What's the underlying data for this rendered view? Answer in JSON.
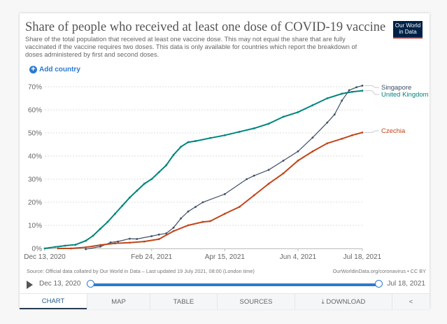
{
  "header": {
    "title": "Share of people who received at least one dose of COVID-19 vaccine",
    "subtitle": "Share of the total population that received at least one vaccine dose. This may not equal the share that are fully vaccinated if the vaccine requires two doses. This data is only available for countries which report the breakdown of doses administered by first and second doses.",
    "logo_line1": "Our World",
    "logo_line2": "in Data",
    "add_country": "Add country"
  },
  "colors": {
    "uk": "#00847e",
    "singapore": "#3c4e66",
    "czechia": "#c0461b",
    "accent": "#2c7ad1"
  },
  "chart_data": {
    "type": "line",
    "title": "Share of people who received at least one dose of COVID-19 vaccine",
    "xlabel": "",
    "ylabel": "",
    "ylim": [
      0,
      70
    ],
    "yticks": [
      "0%",
      "10%",
      "20%",
      "30%",
      "40%",
      "50%",
      "60%",
      "70%"
    ],
    "ytick_values": [
      0,
      10,
      20,
      30,
      40,
      50,
      60,
      70
    ],
    "xticks": [
      "Dec 13, 2020",
      "Feb 24, 2021",
      "Apr 15, 2021",
      "Jun 4, 2021",
      "Jul 18, 2021"
    ],
    "xtick_days": [
      0,
      73,
      123,
      173,
      217
    ],
    "xlim_days": [
      0,
      217
    ],
    "grid": true,
    "legend": "right-end labels",
    "series": [
      {
        "name": "United Kingdom",
        "color_key": "uk",
        "points": [
          [
            0,
            0
          ],
          [
            7,
            0.6
          ],
          [
            14,
            1.2
          ],
          [
            21,
            1.6
          ],
          [
            28,
            3.3
          ],
          [
            33,
            5.5
          ],
          [
            38,
            8.5
          ],
          [
            43,
            11.5
          ],
          [
            48,
            15
          ],
          [
            53,
            18.5
          ],
          [
            58,
            22
          ],
          [
            63,
            25
          ],
          [
            68,
            28
          ],
          [
            73,
            30
          ],
          [
            78,
            33
          ],
          [
            83,
            36
          ],
          [
            88,
            40.5
          ],
          [
            93,
            44
          ],
          [
            98,
            46
          ],
          [
            103,
            46.5
          ],
          [
            113,
            47.8
          ],
          [
            123,
            49
          ],
          [
            133,
            50.5
          ],
          [
            143,
            52
          ],
          [
            153,
            54
          ],
          [
            163,
            57
          ],
          [
            173,
            59
          ],
          [
            183,
            62
          ],
          [
            193,
            65
          ],
          [
            203,
            67
          ],
          [
            210,
            67.8
          ],
          [
            217,
            68.3
          ]
        ]
      },
      {
        "name": "Singapore",
        "color_key": "singapore",
        "points": [
          [
            28,
            -0.3
          ],
          [
            38,
            0.8
          ],
          [
            45,
            2.6
          ],
          [
            50,
            3
          ],
          [
            58,
            4.2
          ],
          [
            63,
            4.1
          ],
          [
            73,
            5.3
          ],
          [
            78,
            6
          ],
          [
            83,
            6.5
          ],
          [
            88,
            9
          ],
          [
            93,
            13
          ],
          [
            98,
            16
          ],
          [
            103,
            18
          ],
          [
            108,
            20
          ],
          [
            123,
            23.5
          ],
          [
            138,
            30
          ],
          [
            143,
            31.5
          ],
          [
            153,
            34
          ],
          [
            163,
            38
          ],
          [
            173,
            42
          ],
          [
            183,
            48
          ],
          [
            193,
            54.5
          ],
          [
            198,
            58
          ],
          [
            203,
            64
          ],
          [
            208,
            68.5
          ],
          [
            213,
            69.8
          ],
          [
            217,
            70.5
          ]
        ]
      },
      {
        "name": "Czechia",
        "color_key": "czechia",
        "points": [
          [
            9,
            0
          ],
          [
            18,
            0
          ],
          [
            28,
            0.5
          ],
          [
            38,
            1.5
          ],
          [
            48,
            2.2
          ],
          [
            58,
            2.5
          ],
          [
            68,
            3
          ],
          [
            78,
            4
          ],
          [
            88,
            7.5
          ],
          [
            98,
            10
          ],
          [
            108,
            11.5
          ],
          [
            113,
            11.8
          ],
          [
            123,
            15
          ],
          [
            133,
            18
          ],
          [
            143,
            23
          ],
          [
            153,
            28
          ],
          [
            163,
            32.5
          ],
          [
            173,
            38
          ],
          [
            183,
            42
          ],
          [
            193,
            45.5
          ],
          [
            203,
            47.5
          ],
          [
            210,
            49
          ],
          [
            217,
            50.2
          ]
        ]
      }
    ]
  },
  "footer": {
    "source": "Source: Official data collated by Our World in Data – Last updated 19 July 2021, 08:00 (London time)",
    "license": "OurWorldinData.org/coronavirus • CC BY",
    "timeline_start": "Dec 13, 2020",
    "timeline_end": "Jul 18, 2021"
  },
  "tabs": [
    {
      "label": "CHART",
      "active": true
    },
    {
      "label": "MAP"
    },
    {
      "label": "TABLE"
    },
    {
      "label": "SOURCES"
    },
    {
      "label": "⤓ DOWNLOAD"
    },
    {
      "label": "<"
    }
  ]
}
